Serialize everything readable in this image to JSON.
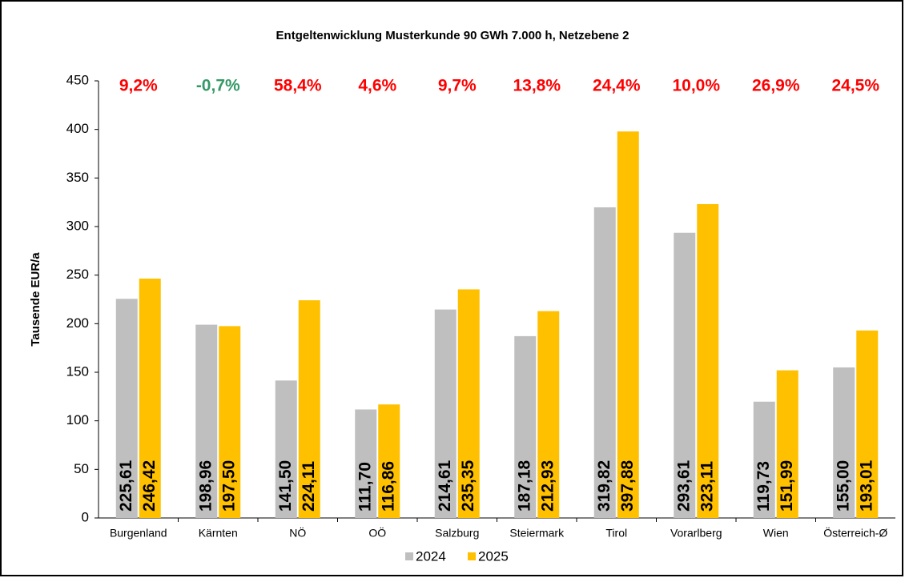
{
  "chart_data": {
    "type": "bar",
    "title": "Entgeltenwicklung Musterkunde 90 GWh 7.000 h, Netzebene 2",
    "ylabel": "Tausende  EUR/a",
    "categories": [
      "Burgenland",
      "Kärnten",
      "NÖ",
      "OÖ",
      "Salzburg",
      "Steiermark",
      "Tirol",
      "Vorarlberg",
      "Wien",
      "Österreich-Ø"
    ],
    "series": [
      {
        "name": "2024",
        "color": "#bfbfbf",
        "values": [
          225.61,
          198.96,
          141.5,
          111.7,
          214.61,
          187.18,
          319.82,
          293.61,
          119.73,
          155.0
        ],
        "value_labels": [
          "225,61",
          "198,96",
          "141,50",
          "111,70",
          "214,61",
          "187,18",
          "319,82",
          "293,61",
          "119,73",
          "155,00"
        ]
      },
      {
        "name": "2025",
        "color": "#ffc000",
        "values": [
          246.42,
          197.5,
          224.11,
          116.86,
          235.35,
          212.93,
          397.88,
          323.11,
          151.99,
          193.01
        ],
        "value_labels": [
          "246,42",
          "197,50",
          "224,11",
          "116,86",
          "235,35",
          "212,93",
          "397,88",
          "323,11",
          "151,99",
          "193,01"
        ]
      }
    ],
    "annotations": [
      {
        "text": "9,2%",
        "color": "#ff0000"
      },
      {
        "text": "-0,7%",
        "color": "#339966"
      },
      {
        "text": "58,4%",
        "color": "#ff0000"
      },
      {
        "text": "4,6%",
        "color": "#ff0000"
      },
      {
        "text": "9,7%",
        "color": "#ff0000"
      },
      {
        "text": "13,8%",
        "color": "#ff0000"
      },
      {
        "text": "24,4%",
        "color": "#ff0000"
      },
      {
        "text": "10,0%",
        "color": "#ff0000"
      },
      {
        "text": "26,9%",
        "color": "#ff0000"
      },
      {
        "text": "24,5%",
        "color": "#ff0000"
      }
    ],
    "ylim": [
      0,
      450
    ],
    "yticks": [
      0,
      50,
      100,
      150,
      200,
      250,
      300,
      350,
      400,
      450
    ],
    "grid": false,
    "legend": "bottom"
  }
}
